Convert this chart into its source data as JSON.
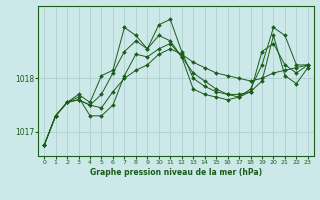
{
  "title": "Graphe pression niveau de la mer (hPa)",
  "bg_color": "#cce8e8",
  "line_color": "#1a5c1a",
  "grid_color": "#aacccc",
  "ylim": [
    1016.55,
    1019.35
  ],
  "yticks": [
    1017,
    1018
  ],
  "xlim": [
    -0.5,
    23.5
  ],
  "xticks": [
    0,
    1,
    2,
    3,
    4,
    5,
    6,
    7,
    8,
    9,
    10,
    11,
    12,
    13,
    14,
    15,
    16,
    17,
    18,
    19,
    20,
    21,
    22,
    23
  ],
  "series": [
    [
      1016.75,
      1017.3,
      1017.55,
      1017.6,
      1017.5,
      1017.45,
      1017.75,
      1018.0,
      1018.15,
      1018.25,
      1018.45,
      1018.55,
      1018.45,
      1018.3,
      1018.2,
      1018.1,
      1018.05,
      1018.0,
      1017.95,
      1018.0,
      1018.1,
      1018.15,
      1018.2,
      1018.25
    ],
    [
      1016.75,
      1017.3,
      1017.55,
      1017.6,
      1017.5,
      1017.7,
      1018.1,
      1018.5,
      1018.7,
      1018.55,
      1018.8,
      1018.7,
      1018.4,
      1017.8,
      1017.7,
      1017.65,
      1017.6,
      1017.65,
      1017.75,
      1018.5,
      1018.65,
      1018.25,
      1018.1,
      1018.25
    ],
    [
      1016.75,
      1017.3,
      1017.55,
      1017.7,
      1017.55,
      1018.05,
      1018.15,
      1018.95,
      1018.8,
      1018.55,
      1019.0,
      1019.1,
      1018.5,
      1018.0,
      1017.85,
      1017.75,
      1017.7,
      1017.65,
      1017.8,
      1018.25,
      1018.95,
      1018.8,
      1018.25,
      1018.25
    ],
    [
      1016.75,
      1017.3,
      1017.55,
      1017.65,
      1017.3,
      1017.3,
      1017.5,
      1018.05,
      1018.45,
      1018.4,
      1018.55,
      1018.65,
      1018.4,
      1018.1,
      1017.95,
      1017.8,
      1017.7,
      1017.7,
      1017.75,
      1017.95,
      1018.8,
      1018.05,
      1017.9,
      1018.2
    ]
  ]
}
